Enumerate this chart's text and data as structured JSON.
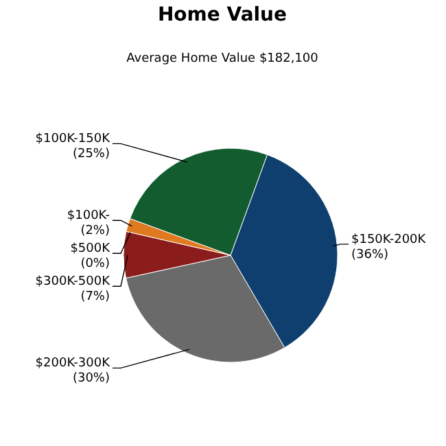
{
  "chart_data": {
    "type": "pie",
    "title": "Home Value",
    "subtitle": "Average Home Value  $182,100",
    "categories": [
      "$150K-200K",
      "$200K-300K",
      "$300K-500K",
      "$500K",
      "$100K-",
      "$100K-150K"
    ],
    "values": [
      36,
      30,
      7,
      0,
      2,
      25
    ],
    "colors": [
      "#0e3f6e",
      "#6a6a6a",
      "#8a1c1c",
      "#b0b0b0",
      "#e07a20",
      "#125c30"
    ],
    "value_labels": [
      "(36%)",
      "(30%)",
      "(7%)",
      "(0%)",
      "(2%)",
      "(25%)"
    ]
  }
}
